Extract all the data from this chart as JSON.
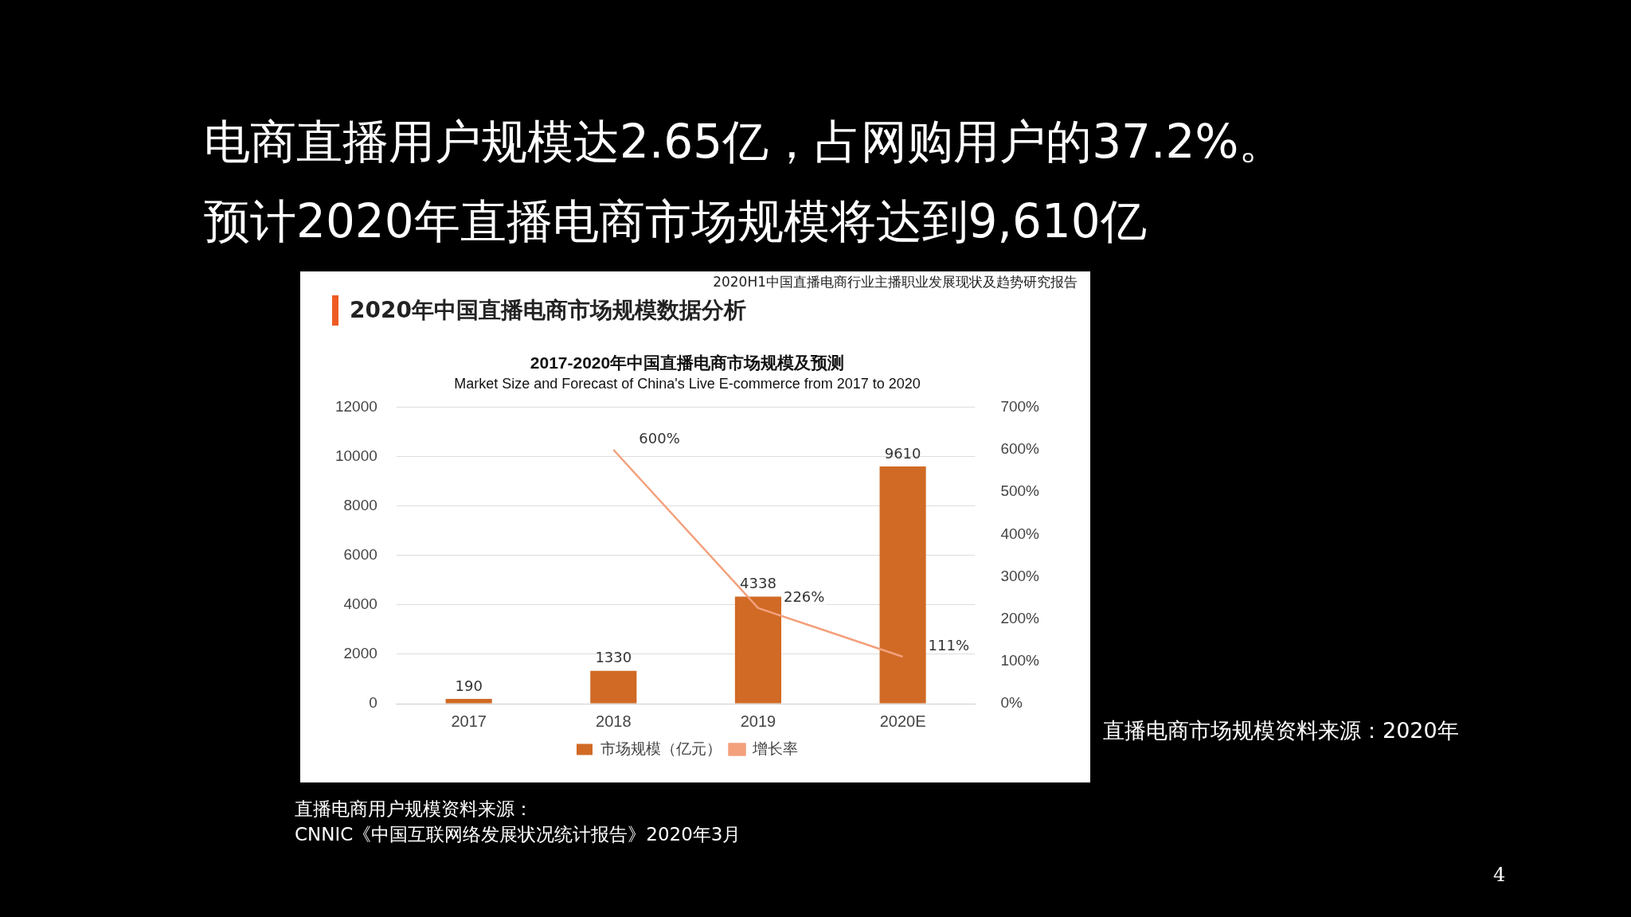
{
  "chart_data": {
    "type": "bar",
    "title": "2017-2020年中国直播电商市场规模及预测",
    "subtitle": "Market Size and Forecast of China's Live E-commerce from 2017 to 2020",
    "categories": [
      "2017",
      "2018",
      "2019",
      "2020E"
    ],
    "series": [
      {
        "name": "市场规模（亿元）",
        "color": "#d06a25",
        "values": [
          190,
          1330,
          4338,
          9610
        ]
      },
      {
        "name": "增长率",
        "type": "line",
        "axis": "y2",
        "color": "#f3a07c",
        "values": [
          null,
          600,
          226,
          111
        ],
        "value_labels": [
          null,
          "600%",
          "226%",
          "111%"
        ]
      }
    ],
    "ylim": [
      0,
      12000
    ],
    "yticks": [
      0,
      2000,
      4000,
      6000,
      8000,
      10000,
      12000
    ],
    "y2lim": [
      0,
      700
    ],
    "y2ticks": [
      {
        "value": 0,
        "label": "0%"
      },
      {
        "value": 100,
        "label": "100%"
      },
      {
        "value": 200,
        "label": "200%"
      },
      {
        "value": 300,
        "label": "300%"
      },
      {
        "value": 400,
        "label": "400%"
      },
      {
        "value": 500,
        "label": "500%"
      },
      {
        "value": 600,
        "label": "600%"
      },
      {
        "value": 700,
        "label": "700%"
      }
    ],
    "grid": "y",
    "legend": "bottom",
    "data_labels": true,
    "marker": "none",
    "annotations": [
      "电商直播用户规模达2.65亿，占网购用户的37.2%。",
      "预计2020年直播电商市场规模将达到9,610亿",
      "2020年中国直播电商市场规模数据分析",
      "2020H1中国直播电商行业主播职业发展现状及趋势研究报告",
      "直播电商市场规模资料来源：2020年",
      "直播电商用户规模资料来源：\nCNNIC《中国互联网络发展状况统计报告》2020年3月",
      "4"
    ]
  }
}
